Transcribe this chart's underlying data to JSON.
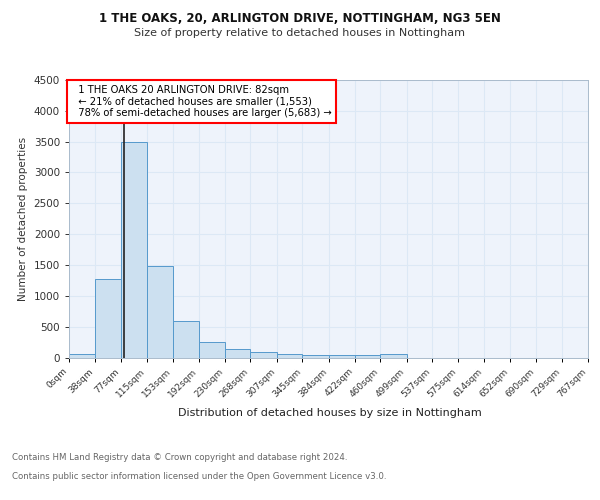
{
  "title1": "1 THE OAKS, 20, ARLINGTON DRIVE, NOTTINGHAM, NG3 5EN",
  "title2": "Size of property relative to detached houses in Nottingham",
  "xlabel": "Distribution of detached houses by size in Nottingham",
  "ylabel": "Number of detached properties",
  "bin_edges": [
    0,
    38,
    77,
    115,
    153,
    192,
    230,
    268,
    307,
    345,
    384,
    422,
    460,
    499,
    537,
    575,
    614,
    652,
    690,
    729,
    767
  ],
  "bar_heights": [
    50,
    1280,
    3500,
    1480,
    590,
    250,
    140,
    90,
    55,
    45,
    45,
    45,
    50,
    0,
    0,
    0,
    0,
    0,
    0,
    0
  ],
  "bar_color": "#cce0f0",
  "bar_edge_color": "#5599cc",
  "grid_color": "#dce8f5",
  "bg_color": "#eef3fb",
  "property_size": 82,
  "vline_color": "#222222",
  "annotation_text": "  1 THE OAKS 20 ARLINGTON DRIVE: 82sqm\n  ← 21% of detached houses are smaller (1,553)\n  78% of semi-detached houses are larger (5,683) →",
  "footer1": "Contains HM Land Registry data © Crown copyright and database right 2024.",
  "footer2": "Contains public sector information licensed under the Open Government Licence v3.0.",
  "ylim": [
    0,
    4500
  ],
  "yticks": [
    0,
    500,
    1000,
    1500,
    2000,
    2500,
    3000,
    3500,
    4000,
    4500
  ]
}
